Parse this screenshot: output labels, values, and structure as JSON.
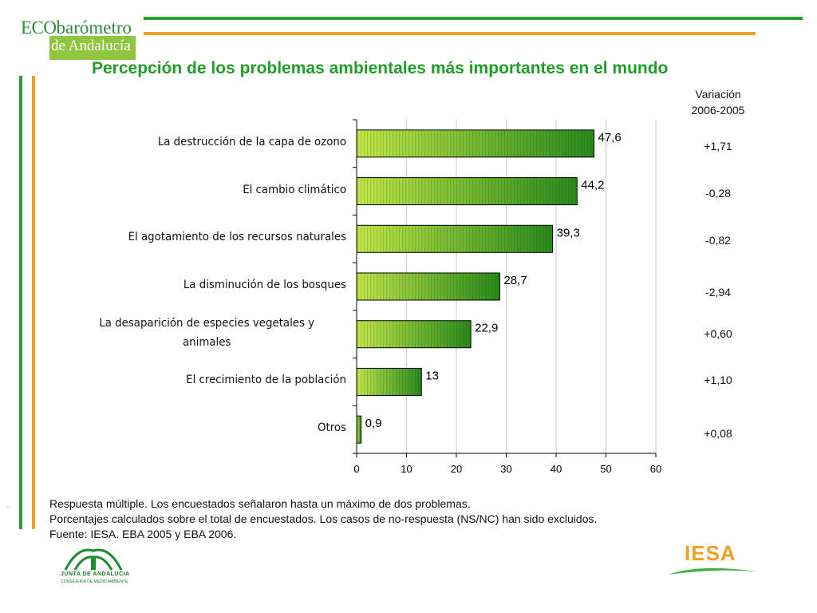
{
  "logo": {
    "line1_caps": "ECO",
    "line1_rest": "barómetro",
    "line2": "de Andalucía"
  },
  "title": "Percepción de los problemas ambientales más importantes en el mundo",
  "variation_header": {
    "line1": "Variación",
    "line2": "2006-2005"
  },
  "chart_data": {
    "type": "bar",
    "orientation": "horizontal",
    "categories": [
      "La destrucción de la capa de ozono",
      "El cambio climático",
      "El agotamiento de los recursos naturales",
      "La disminución de los bosques",
      "La desaparición de especies vegetales y animales",
      "El crecimiento de la población",
      "Otros"
    ],
    "category_lines": [
      [
        "La destrucción de la capa de ozono"
      ],
      [
        "El cambio climático"
      ],
      [
        "El agotamiento de los recursos naturales"
      ],
      [
        "La disminución de los bosques"
      ],
      [
        "La desaparición de especies vegetales y",
        "animales"
      ],
      [
        "El crecimiento de la población"
      ],
      [
        "Otros"
      ]
    ],
    "values": [
      47.6,
      44.2,
      39.3,
      28.7,
      22.9,
      13,
      0.9
    ],
    "data_labels": [
      "47,6",
      "44,2",
      "39,3",
      "28,7",
      "22,9",
      "13",
      "0,9"
    ],
    "xlim": [
      0,
      60
    ],
    "xticks": [
      "0",
      "10",
      "20",
      "30",
      "40",
      "50",
      "60"
    ],
    "grid": true,
    "colors": {
      "bar_light": "#b6e23a",
      "bar_dark": "#2a8a1c"
    }
  },
  "variations": [
    "+1,71",
    "-0,28",
    "-0,82",
    "-2,94",
    "+0,60",
    "+1,10",
    "+0,08"
  ],
  "notes": [
    "Respuesta múltiple. Los encuestados señalaron hasta un máximo de dos problemas.",
    "Porcentajes calculados sobre el total de encuestados. Los casos de no-respuesta (NS/NC) han sido excluidos.",
    "Fuente: IESA. EBA 2005 y  EBA 2006."
  ],
  "junta": {
    "name": "JUNTA DE ANDALUCIA",
    "sub": "CONSEJERIA DE MEDIO AMBIENTE"
  },
  "iesa": "IESA"
}
